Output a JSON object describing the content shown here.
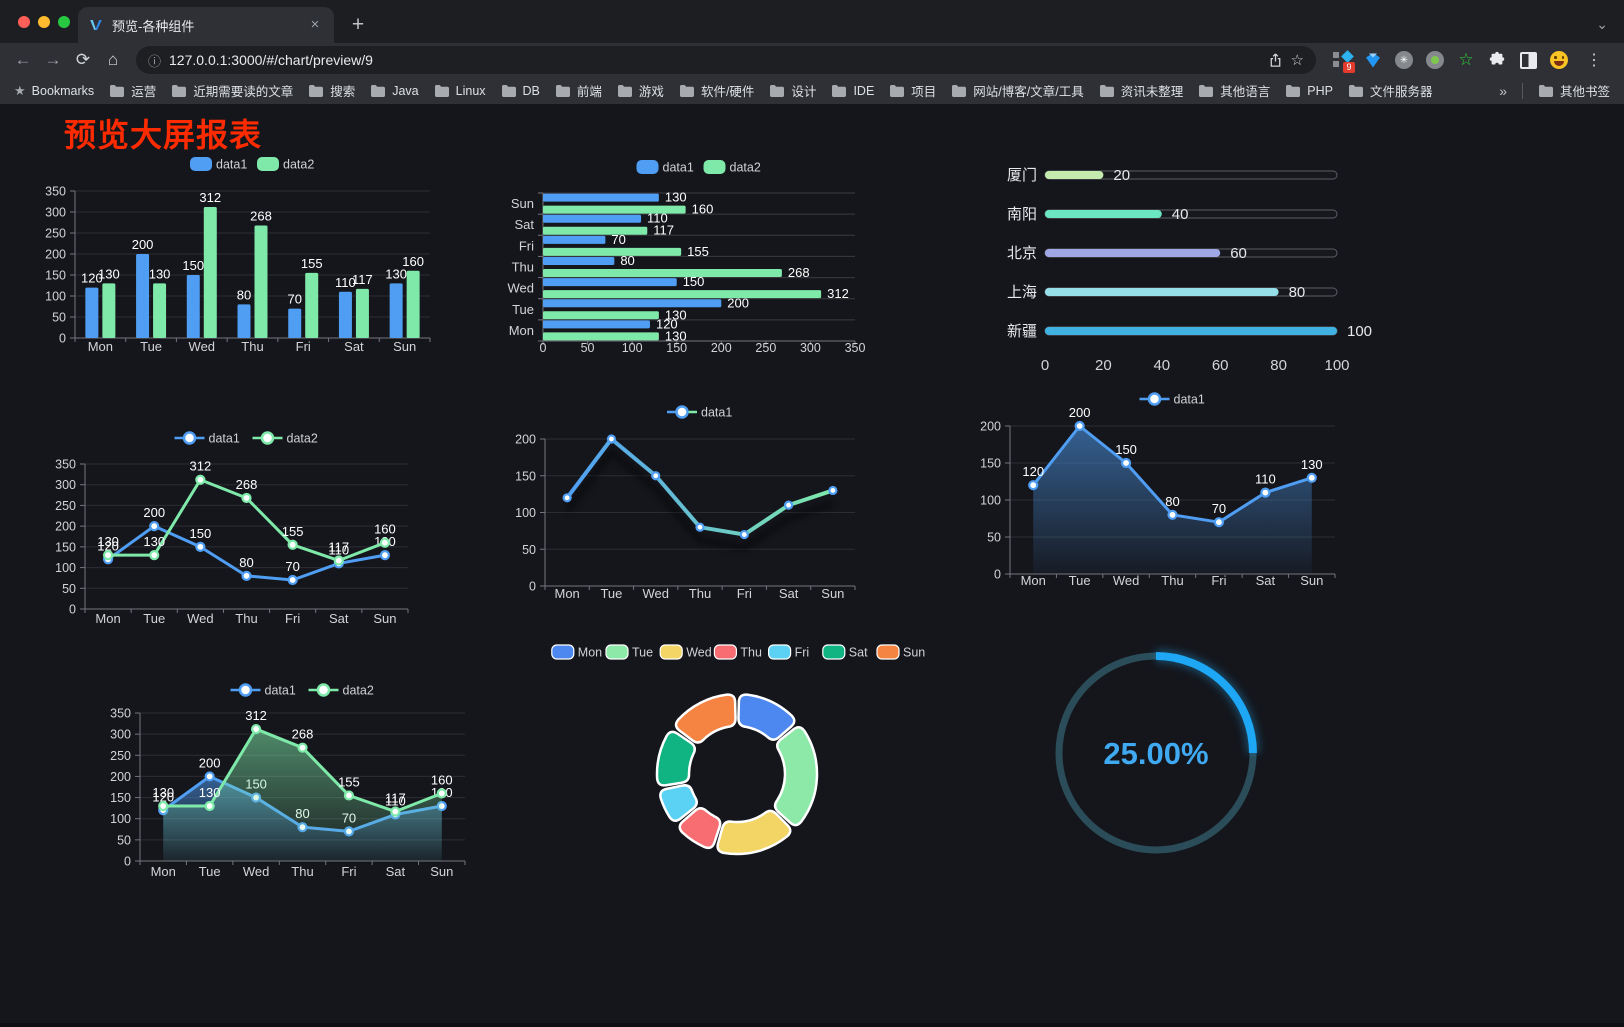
{
  "icons": {
    "back": "←",
    "forward": "→",
    "reload": "⟳",
    "home": "⌂",
    "info": "ⓘ",
    "star_outline": "☆",
    "menu": "⋮",
    "close": "×",
    "new_tab": "+",
    "chevron_down": "⌄",
    "overflow": "»",
    "bookmarks_star": "★",
    "command_circle": "✳"
  },
  "browser": {
    "tab_title": "预览-各种组件",
    "url": "127.0.0.1:3000/#/chart/preview/9",
    "extensions_badge": "9",
    "bookmarks_label": "Bookmarks",
    "bookmark_folders": [
      "运营",
      "近期需要读的文章",
      "搜索",
      "Java",
      "Linux",
      "DB",
      "前端",
      "游戏",
      "软件/硬件",
      "设计",
      "IDE",
      "项目",
      "网站/博客/文章/工具",
      "资讯未整理",
      "其他语言",
      "PHP",
      "文件服务器"
    ],
    "other_bookmarks": "其他书签",
    "traffic_lights": [
      "#ff5f57",
      "#febc2e",
      "#28c840"
    ]
  },
  "page": {
    "title": "预览大屏报表",
    "title_color": "#ff2b00",
    "background": "#15161c"
  },
  "palette": {
    "axis_label": "#d2d4d8",
    "grid_line": "rgba(255,255,255,0.10)",
    "band_line": "rgba(255,255,255,0.16)",
    "axis_line": "#72767d",
    "value_label": "#ffffff",
    "legend_text": "#cfd1d5",
    "data1_blue": "#4f9ef3",
    "data2_green": "#7fe9a9"
  },
  "chart_data": [
    {
      "type": "bar",
      "orientation": "vertical",
      "legend_position": "top",
      "categories": [
        "Mon",
        "Tue",
        "Wed",
        "Thu",
        "Fri",
        "Sat",
        "Sun"
      ],
      "series": [
        {
          "name": "data1",
          "color": "#4f9ef3",
          "values": [
            120,
            200,
            150,
            80,
            70,
            110,
            130
          ]
        },
        {
          "name": "data2",
          "color": "#7fe9a9",
          "values": [
            130,
            130,
            312,
            268,
            155,
            117,
            160
          ]
        }
      ],
      "ylim": [
        0,
        350
      ],
      "ytick_step": 50,
      "value_labels": true
    },
    {
      "type": "bar",
      "orientation": "horizontal",
      "legend_position": "top",
      "categories_top_to_bottom": [
        "Sun",
        "Sat",
        "Fri",
        "Thu",
        "Wed",
        "Tue",
        "Mon"
      ],
      "series": [
        {
          "name": "data1",
          "color": "#4f9ef3",
          "values": [
            130,
            110,
            70,
            80,
            150,
            200,
            120
          ]
        },
        {
          "name": "data2",
          "color": "#7fe9a9",
          "values": [
            160,
            117,
            155,
            268,
            312,
            130,
            130
          ]
        }
      ],
      "xlim": [
        0,
        350
      ],
      "xtick_step": 50,
      "value_labels": true
    },
    {
      "type": "bar",
      "subtype": "progress",
      "items": [
        {
          "label": "厦门",
          "value": 20,
          "color": "#c4ebad"
        },
        {
          "label": "南阳",
          "value": 40,
          "color": "#6be6c1"
        },
        {
          "label": "北京",
          "value": 60,
          "color": "#a0a7e6"
        },
        {
          "label": "上海",
          "value": 80,
          "color": "#96dee8"
        },
        {
          "label": "新疆",
          "value": 100,
          "color": "#3fb1e3"
        }
      ],
      "xlim": [
        0,
        100
      ],
      "xticks": [
        0,
        20,
        40,
        60,
        80,
        100
      ],
      "value_labels": true
    },
    {
      "type": "line",
      "legend_position": "top",
      "categories": [
        "Mon",
        "Tue",
        "Wed",
        "Thu",
        "Fri",
        "Sat",
        "Sun"
      ],
      "series": [
        {
          "name": "data1",
          "color": "#4f9ef3",
          "values": [
            120,
            200,
            150,
            80,
            70,
            110,
            130
          ]
        },
        {
          "name": "data2",
          "color": "#7fe9a9",
          "values": [
            130,
            130,
            312,
            268,
            155,
            117,
            160
          ]
        }
      ],
      "ylim": [
        0,
        350
      ],
      "ytick_step": 50,
      "value_labels": true
    },
    {
      "type": "line",
      "subtype": "gradient-shadow",
      "legend_position": "top",
      "categories": [
        "Mon",
        "Tue",
        "Wed",
        "Thu",
        "Fri",
        "Sat",
        "Sun"
      ],
      "series": [
        {
          "name": "data1",
          "color_start": "#4f9ef3",
          "color_end": "#7fe9a9",
          "values": [
            120,
            200,
            150,
            80,
            70,
            110,
            130
          ]
        }
      ],
      "ylim": [
        0,
        200
      ],
      "ytick_step": 50,
      "value_labels": false
    },
    {
      "type": "area",
      "legend_position": "top",
      "categories": [
        "Mon",
        "Tue",
        "Wed",
        "Thu",
        "Fri",
        "Sat",
        "Sun"
      ],
      "series": [
        {
          "name": "data1",
          "color": "#4f9ef3",
          "values": [
            120,
            200,
            150,
            80,
            70,
            110,
            130
          ]
        }
      ],
      "ylim": [
        0,
        200
      ],
      "ytick_step": 50,
      "value_labels": true
    },
    {
      "type": "area",
      "legend_position": "top",
      "categories": [
        "Mon",
        "Tue",
        "Wed",
        "Thu",
        "Fri",
        "Sat",
        "Sun"
      ],
      "series": [
        {
          "name": "data1",
          "color": "#4f9ef3",
          "values": [
            120,
            200,
            150,
            80,
            70,
            110,
            130
          ]
        },
        {
          "name": "data2",
          "color": "#7fe9a9",
          "values": [
            130,
            130,
            312,
            268,
            155,
            117,
            160
          ]
        }
      ],
      "ylim": [
        0,
        350
      ],
      "ytick_step": 50,
      "value_labels": true
    },
    {
      "type": "pie",
      "subtype": "doughnut-rounded",
      "legend_position": "top",
      "labels": [
        "Mon",
        "Tue",
        "Wed",
        "Thu",
        "Fri",
        "Sat",
        "Sun"
      ],
      "values": [
        120,
        200,
        150,
        80,
        70,
        110,
        130
      ],
      "colors": [
        "#4d87f0",
        "#8ce9a8",
        "#f3d566",
        "#f76d71",
        "#5bd2f3",
        "#0fb482",
        "#f58442"
      ]
    },
    {
      "type": "gauge",
      "subtype": "ring-progress",
      "value": 25,
      "max": 100,
      "display": "25.00%",
      "color": "#1ea7f4",
      "track_color": "#2a4d59",
      "text_color": "#3fa9f1"
    }
  ]
}
